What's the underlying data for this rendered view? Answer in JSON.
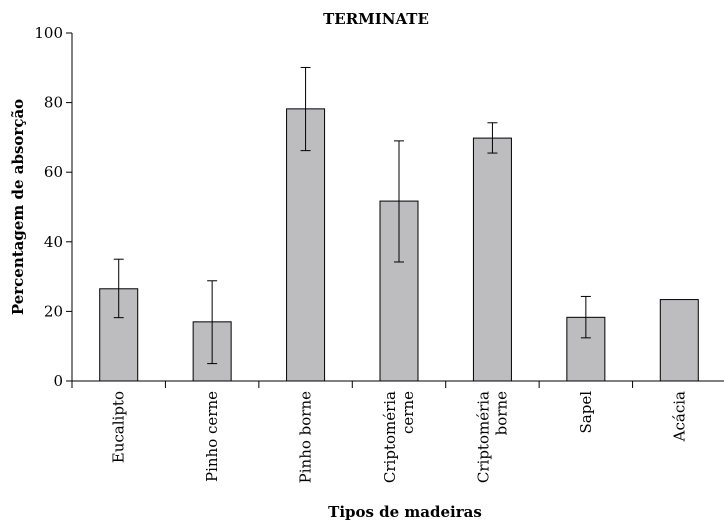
{
  "chart_data": {
    "type": "bar",
    "title": "TERMINATE",
    "xlabel": "Tipos de madeiras",
    "ylabel": "Percentagem de absorção",
    "ylim": [
      0,
      100
    ],
    "yticks": [
      "0",
      "20",
      "40",
      "60",
      "80",
      "100"
    ],
    "grid": false,
    "legend": "none",
    "bar_color": "#bdbdc0",
    "categories": [
      [
        "Eucalipto"
      ],
      [
        "Pinho cerne"
      ],
      [
        "Pinho borne"
      ],
      [
        "Criptoméria",
        "cerne"
      ],
      [
        "Criptoméria",
        "borne"
      ],
      [
        "Sapel"
      ],
      [
        "Acácia"
      ]
    ],
    "values": [
      26.5,
      17,
      78.2,
      51.7,
      69.8,
      18.3,
      23.4
    ],
    "error_bars": [
      [
        18.2,
        35.0
      ],
      [
        5.0,
        28.8
      ],
      [
        66.2,
        90.1
      ],
      [
        34.2,
        69.0
      ],
      [
        65.5,
        74.2
      ],
      [
        12.4,
        24.3
      ],
      null
    ]
  }
}
